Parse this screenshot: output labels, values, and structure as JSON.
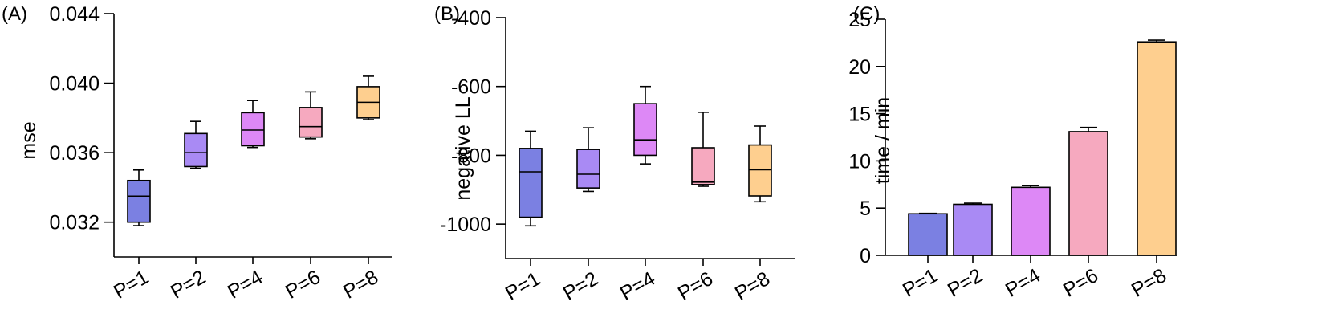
{
  "chart_data": [
    {
      "panel": "(A)",
      "type": "box",
      "ylabel": "mse",
      "xlabel": "",
      "ylim": [
        0.03,
        0.044
      ],
      "yticks": [
        "0.032",
        "0.036",
        "0.040",
        "0.044"
      ],
      "categories": [
        "P=1",
        "P=2",
        "P=4",
        "P=6",
        "P=8"
      ],
      "boxes": [
        {
          "name": "P=1",
          "min": 0.0318,
          "q1": 0.032,
          "median": 0.0335,
          "q3": 0.0344,
          "max": 0.035
        },
        {
          "name": "P=2",
          "min": 0.0351,
          "q1": 0.0352,
          "median": 0.036,
          "q3": 0.0371,
          "max": 0.0378
        },
        {
          "name": "P=4",
          "min": 0.0363,
          "q1": 0.0364,
          "median": 0.0373,
          "q3": 0.0383,
          "max": 0.039
        },
        {
          "name": "P=6",
          "min": 0.0368,
          "q1": 0.0369,
          "median": 0.0375,
          "q3": 0.0386,
          "max": 0.0395
        },
        {
          "name": "P=8",
          "min": 0.0379,
          "q1": 0.038,
          "median": 0.0389,
          "q3": 0.0398,
          "max": 0.0404
        }
      ]
    },
    {
      "panel": "(B)",
      "type": "box",
      "ylabel": "negative LL",
      "xlabel": "",
      "ylim": [
        -1100,
        -400
      ],
      "yticks": [
        "-400",
        "-600",
        "-800",
        "-1000"
      ],
      "categories": [
        "P=1",
        "P=2",
        "P=4",
        "P=6",
        "P=8"
      ],
      "boxes": [
        {
          "name": "P=1",
          "min": -1005,
          "q1": -980,
          "median": -848,
          "q3": -780,
          "max": -730
        },
        {
          "name": "P=2",
          "min": -905,
          "q1": -895,
          "median": -855,
          "q3": -783,
          "max": -720
        },
        {
          "name": "P=4",
          "min": -825,
          "q1": -800,
          "median": -755,
          "q3": -650,
          "max": -600
        },
        {
          "name": "P=6",
          "min": -890,
          "q1": -885,
          "median": -878,
          "q3": -778,
          "max": -675
        },
        {
          "name": "P=8",
          "min": -935,
          "q1": -918,
          "median": -842,
          "q3": -770,
          "max": -715
        }
      ]
    },
    {
      "panel": "(C)",
      "type": "bar",
      "ylabel": "time / min",
      "xlabel": "",
      "ylim": [
        0,
        25
      ],
      "yticks": [
        "0",
        "5",
        "10",
        "15",
        "20",
        "25"
      ],
      "categories": [
        "P=1",
        "P=2",
        "P=4",
        "P=6",
        "P=8"
      ],
      "values": [
        4.4,
        5.4,
        7.2,
        13.1,
        22.6
      ],
      "errors": [
        0.05,
        0.12,
        0.18,
        0.45,
        0.18
      ]
    }
  ],
  "colors": {
    "P=1": "#7b80e2",
    "P=2": "#a98af4",
    "P=4": "#dd88f6",
    "P=6": "#f6a9bf",
    "P=8": "#fecf8f"
  }
}
